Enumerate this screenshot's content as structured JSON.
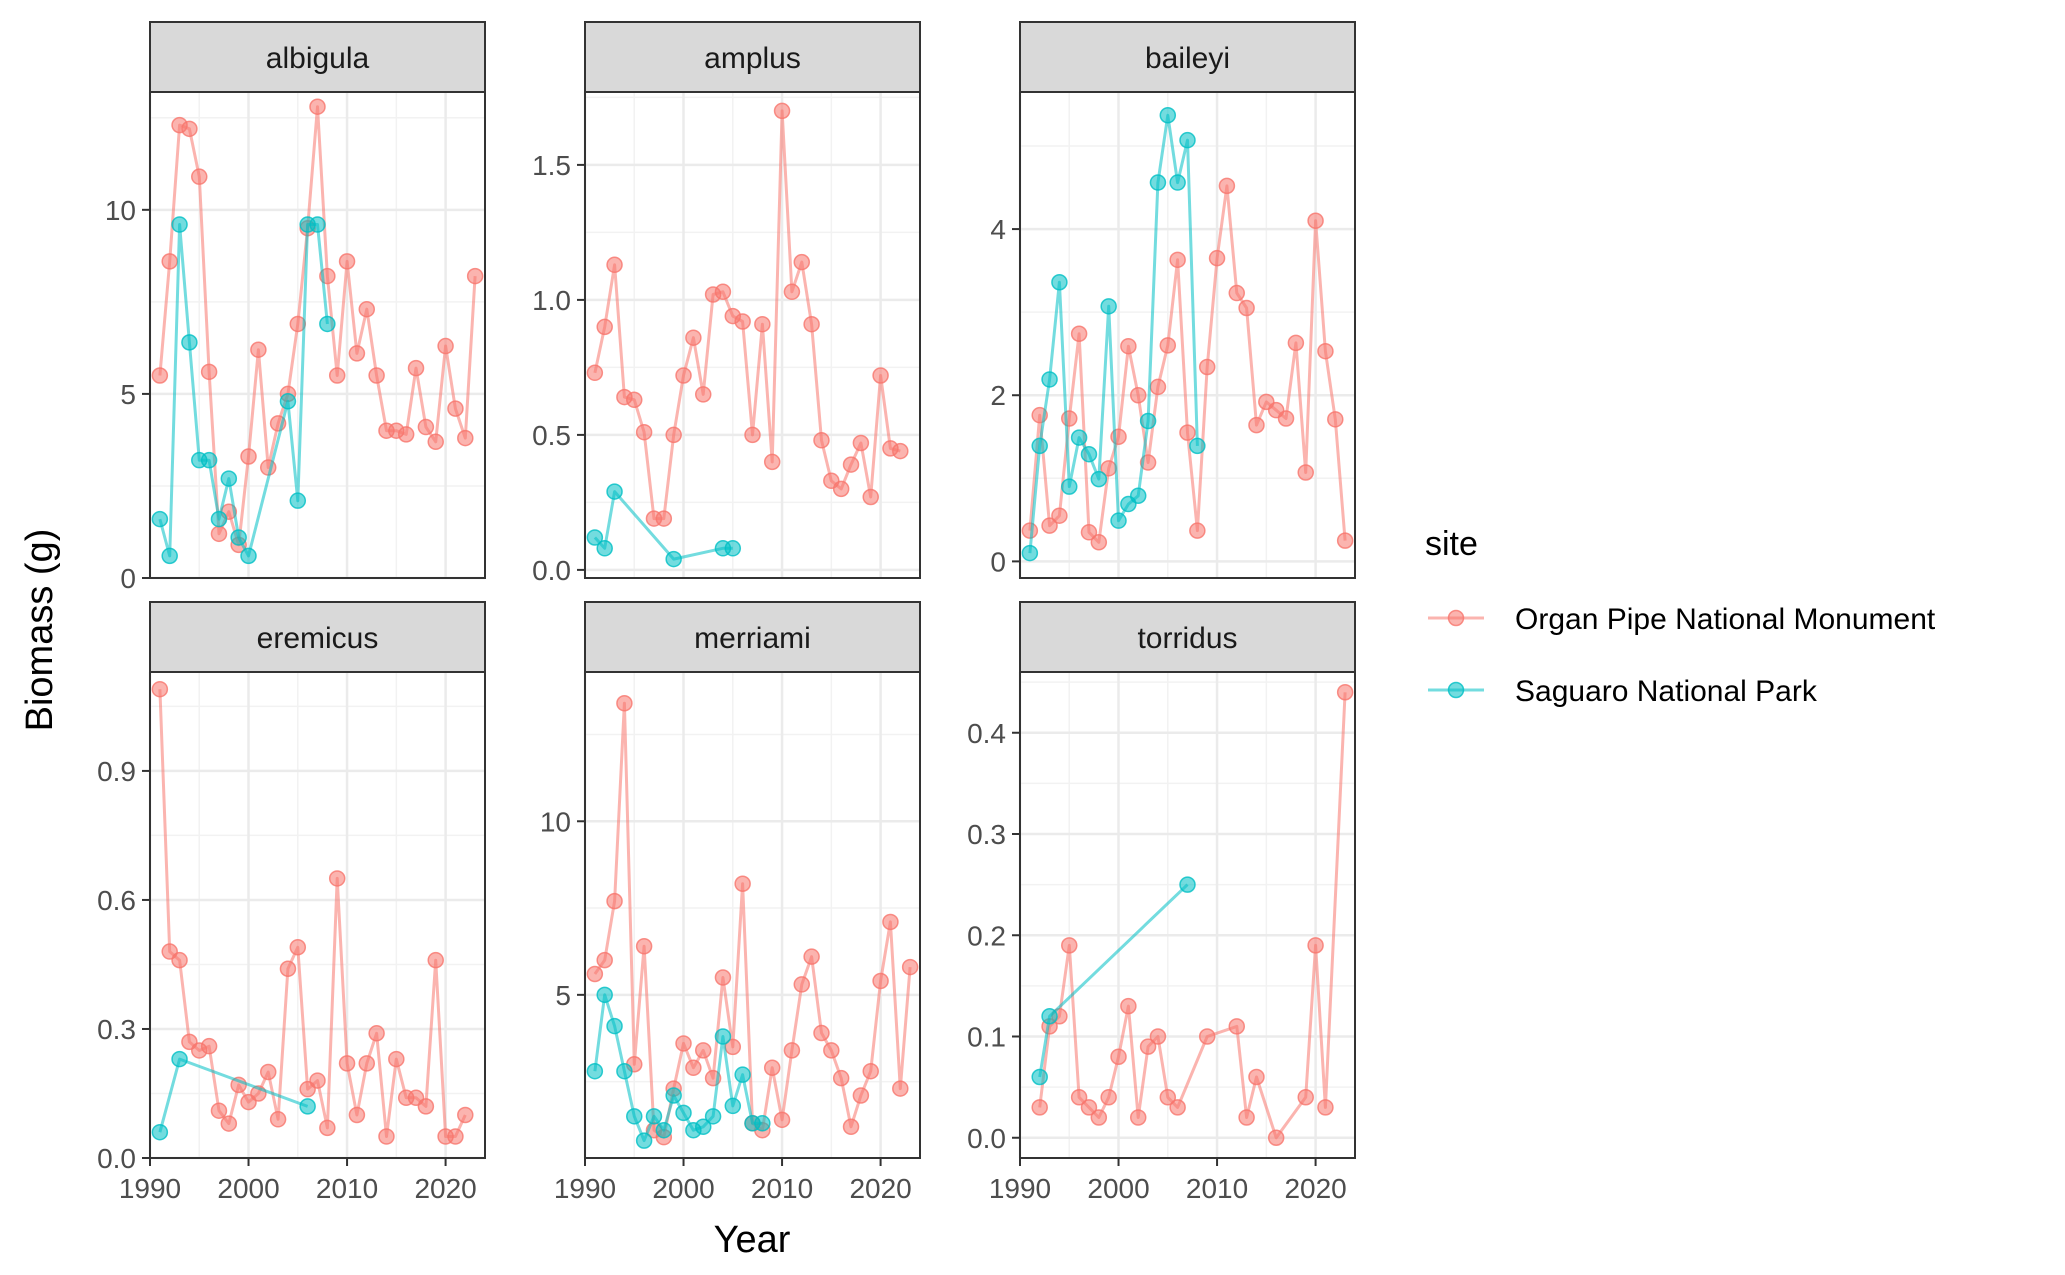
{
  "chart_data": {
    "type": "line",
    "xlabel": "Year",
    "ylabel": "Biomass (g)",
    "legend": {
      "title": "site",
      "placement": "right"
    },
    "series_defs": [
      {
        "name": "Organ Pipe National Monument",
        "color": "#F8766D"
      },
      {
        "name": "Saguaro National Park",
        "color": "#00BFC4"
      }
    ],
    "xlim": [
      1990,
      2024
    ],
    "x_ticks": [
      1990,
      2000,
      2010,
      2020
    ],
    "x_tick_labels": [
      "1990",
      "2000",
      "2010",
      "2020"
    ],
    "grid": true,
    "panels": [
      {
        "label": "albigula",
        "ylim": [
          0,
          13.2
        ],
        "y_ticks": [
          0,
          5,
          10
        ],
        "y_tick_labels": [
          "0",
          "5",
          "10"
        ],
        "series": [
          {
            "name": "Organ Pipe National Monument",
            "x": [
              1991,
              1992,
              1993,
              1994,
              1995,
              1996,
              1997,
              1998,
              1999,
              2000,
              2001,
              2002,
              2003,
              2004,
              2005,
              2006,
              2007,
              2008,
              2009,
              2010,
              2011,
              2012,
              2013,
              2014,
              2015,
              2016,
              2017,
              2018,
              2019,
              2020,
              2021,
              2022,
              2023
            ],
            "y": [
              5.5,
              8.6,
              12.3,
              12.2,
              10.9,
              5.6,
              1.2,
              1.8,
              0.9,
              3.3,
              6.2,
              3.0,
              4.2,
              5.0,
              6.9,
              9.5,
              12.8,
              8.2,
              5.5,
              8.6,
              6.1,
              7.3,
              5.5,
              4.0,
              4.0,
              3.9,
              5.7,
              4.1,
              3.7,
              6.3,
              4.6,
              3.8,
              8.2
            ]
          },
          {
            "name": "Saguaro National Park",
            "x": [
              1991,
              1992,
              1993,
              1994,
              1995,
              1996,
              1997,
              1998,
              1999,
              2000,
              2004,
              2005,
              2006,
              2007,
              2008
            ],
            "y": [
              1.6,
              0.6,
              9.6,
              6.4,
              3.2,
              3.2,
              1.6,
              2.7,
              1.1,
              0.6,
              4.8,
              2.1,
              9.6,
              9.6,
              6.9
            ]
          }
        ]
      },
      {
        "label": "amplus",
        "ylim": [
          -0.03,
          1.77
        ],
        "y_ticks": [
          0.0,
          0.5,
          1.0,
          1.5
        ],
        "y_tick_labels": [
          "0.0",
          "0.5",
          "1.0",
          "1.5"
        ],
        "series": [
          {
            "name": "Organ Pipe National Monument",
            "x": [
              1991,
              1992,
              1993,
              1994,
              1995,
              1996,
              1997,
              1998,
              1999,
              2000,
              2001,
              2002,
              2003,
              2004,
              2005,
              2006,
              2007,
              2008,
              2009,
              2010,
              2011,
              2012,
              2013,
              2014,
              2015,
              2016,
              2017,
              2018,
              2019,
              2020,
              2021,
              2022
            ],
            "y": [
              0.73,
              0.9,
              1.13,
              0.64,
              0.63,
              0.51,
              0.19,
              0.19,
              0.5,
              0.72,
              0.86,
              0.65,
              1.02,
              1.03,
              0.94,
              0.92,
              0.5,
              0.91,
              0.4,
              1.7,
              1.03,
              1.14,
              0.91,
              0.48,
              0.33,
              0.3,
              0.39,
              0.47,
              0.27,
              0.72,
              0.45,
              0.44
            ]
          },
          {
            "name": "Saguaro National Park",
            "x": [
              1991,
              1992,
              1993,
              1999,
              2004,
              2005
            ],
            "y": [
              0.12,
              0.08,
              0.29,
              0.04,
              0.08,
              0.08
            ]
          }
        ]
      },
      {
        "label": "baileyi",
        "ylim": [
          -0.2,
          5.65
        ],
        "y_ticks": [
          0,
          2,
          4
        ],
        "y_tick_labels": [
          "0",
          "2",
          "4"
        ],
        "series": [
          {
            "name": "Organ Pipe National Monument",
            "x": [
              1991,
              1992,
              1993,
              1994,
              1995,
              1996,
              1997,
              1998,
              1999,
              2000,
              2001,
              2002,
              2003,
              2004,
              2005,
              2006,
              2007,
              2008,
              2009,
              2010,
              2011,
              2012,
              2013,
              2014,
              2015,
              2016,
              2017,
              2018,
              2019,
              2020,
              2021,
              2022,
              2023
            ],
            "y": [
              0.37,
              1.76,
              0.43,
              0.55,
              1.72,
              2.74,
              0.35,
              0.23,
              1.12,
              1.5,
              2.59,
              2.0,
              1.19,
              2.1,
              2.6,
              3.63,
              1.55,
              0.37,
              2.34,
              3.65,
              4.52,
              3.23,
              3.05,
              1.64,
              1.92,
              1.82,
              1.72,
              2.63,
              1.07,
              4.1,
              2.53,
              1.71,
              0.25
            ]
          },
          {
            "name": "Saguaro National Park",
            "x": [
              1991,
              1992,
              1993,
              1994,
              1995,
              1996,
              1997,
              1998,
              1999,
              2000,
              2001,
              2002,
              2003,
              2004,
              2005,
              2006,
              2007,
              2008
            ],
            "y": [
              0.1,
              1.39,
              2.19,
              3.36,
              0.9,
              1.49,
              1.29,
              0.99,
              3.07,
              0.49,
              0.69,
              0.79,
              1.69,
              4.56,
              5.37,
              4.56,
              5.07,
              1.39
            ]
          }
        ]
      },
      {
        "label": "eremicus",
        "ylim": [
          0,
          1.13
        ],
        "y_ticks": [
          0.0,
          0.3,
          0.6,
          0.9
        ],
        "y_tick_labels": [
          "0.0",
          "0.3",
          "0.6",
          "0.9"
        ],
        "series": [
          {
            "name": "Organ Pipe National Monument",
            "x": [
              1991,
              1992,
              1993,
              1994,
              1995,
              1996,
              1997,
              1998,
              1999,
              2000,
              2001,
              2002,
              2003,
              2004,
              2005,
              2006,
              2007,
              2008,
              2009,
              2010,
              2011,
              2012,
              2013,
              2014,
              2015,
              2016,
              2017,
              2018,
              2019,
              2020,
              2021,
              2022
            ],
            "y": [
              1.09,
              0.48,
              0.46,
              0.27,
              0.25,
              0.26,
              0.11,
              0.08,
              0.17,
              0.13,
              0.15,
              0.2,
              0.09,
              0.44,
              0.49,
              0.16,
              0.18,
              0.07,
              0.65,
              0.22,
              0.1,
              0.22,
              0.29,
              0.05,
              0.23,
              0.14,
              0.14,
              0.12,
              0.46,
              0.05,
              0.05,
              0.1
            ]
          },
          {
            "name": "Saguaro National Park",
            "x": [
              1991,
              1993,
              2006
            ],
            "y": [
              0.06,
              0.23,
              0.12
            ]
          }
        ]
      },
      {
        "label": "merriami",
        "ylim": [
          0.3,
          14.3
        ],
        "y_ticks": [
          5,
          10
        ],
        "y_tick_labels": [
          "5",
          "10"
        ],
        "series": [
          {
            "name": "Organ Pipe National Monument",
            "x": [
              1991,
              1992,
              1993,
              1994,
              1995,
              1996,
              1997,
              1998,
              1999,
              2000,
              2001,
              2002,
              2003,
              2004,
              2005,
              2006,
              2007,
              2008,
              2009,
              2010,
              2011,
              2012,
              2013,
              2014,
              2015,
              2016,
              2017,
              2018,
              2019,
              2020,
              2021,
              2022,
              2023
            ],
            "y": [
              5.6,
              6.0,
              7.7,
              13.4,
              3.0,
              6.4,
              1.1,
              0.9,
              2.3,
              3.6,
              2.9,
              3.4,
              2.6,
              5.5,
              3.5,
              8.2,
              1.3,
              1.1,
              2.9,
              1.4,
              3.4,
              5.3,
              6.1,
              3.9,
              3.4,
              2.6,
              1.2,
              2.1,
              2.8,
              5.4,
              7.1,
              2.3,
              5.8
            ]
          },
          {
            "name": "Saguaro National Park",
            "x": [
              1991,
              1992,
              1993,
              1994,
              1995,
              1996,
              1997,
              1998,
              1999,
              2000,
              2001,
              2002,
              2003,
              2004,
              2005,
              2006,
              2007,
              2008
            ],
            "y": [
              2.8,
              5.0,
              4.1,
              2.8,
              1.5,
              0.8,
              1.5,
              1.1,
              2.1,
              1.6,
              1.1,
              1.2,
              1.5,
              3.8,
              1.8,
              2.7,
              1.3,
              1.3
            ]
          }
        ]
      },
      {
        "label": "torridus",
        "ylim": [
          -0.02,
          0.46
        ],
        "y_ticks": [
          0.0,
          0.1,
          0.2,
          0.3,
          0.4
        ],
        "y_tick_labels": [
          "0.0",
          "0.1",
          "0.2",
          "0.3",
          "0.4"
        ],
        "series": [
          {
            "name": "Organ Pipe National Monument",
            "x": [
              1992,
              1993,
              1994,
              1995,
              1996,
              1997,
              1998,
              1999,
              2000,
              2001,
              2002,
              2003,
              2004,
              2005,
              2006,
              2009,
              2012,
              2013,
              2014,
              2016,
              2019,
              2020,
              2021,
              2023
            ],
            "y": [
              0.03,
              0.11,
              0.12,
              0.19,
              0.04,
              0.03,
              0.02,
              0.04,
              0.08,
              0.13,
              0.02,
              0.09,
              0.1,
              0.04,
              0.03,
              0.1,
              0.11,
              0.02,
              0.06,
              0.0,
              0.04,
              0.19,
              0.03,
              0.44
            ]
          },
          {
            "name": "Saguaro National Park",
            "x": [
              1992,
              1993,
              2007
            ],
            "y": [
              0.06,
              0.12,
              0.25
            ]
          }
        ]
      }
    ]
  }
}
